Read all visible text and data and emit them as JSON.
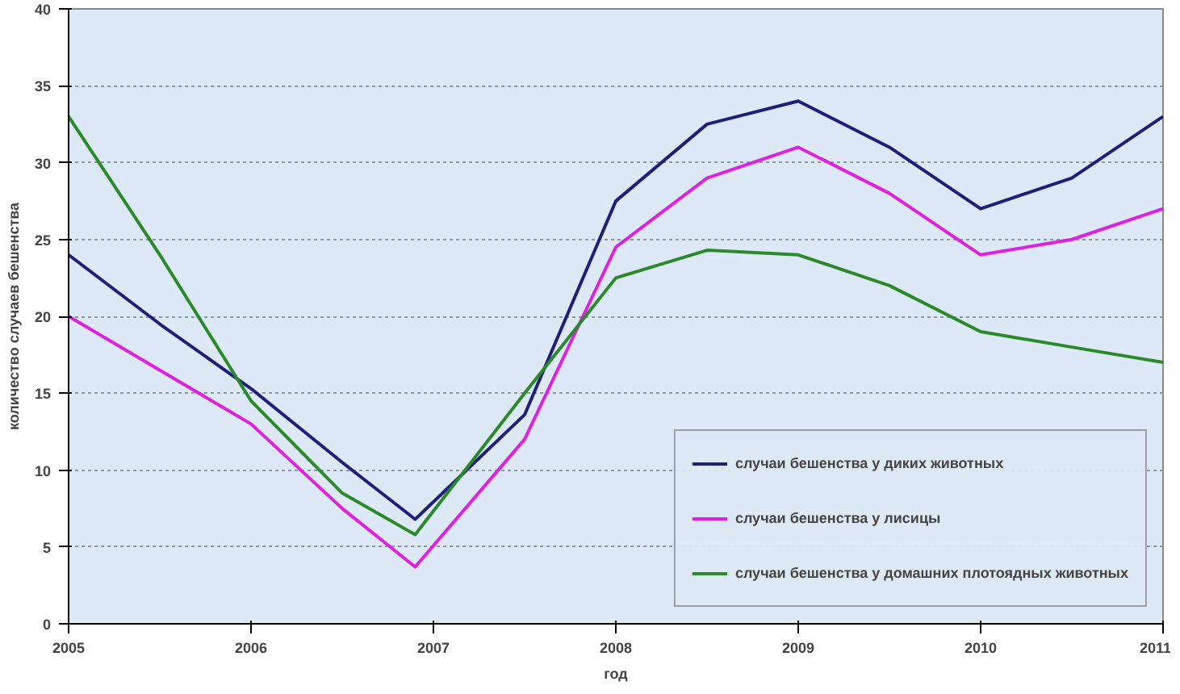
{
  "chart_data": {
    "type": "line",
    "ylabel": "количество случаев бешенства",
    "xlabel": "год",
    "xlim": [
      2005,
      2011
    ],
    "xticks": [
      2005,
      2006,
      2007,
      2008,
      2009,
      2010,
      2011
    ],
    "ylim": [
      0,
      40
    ],
    "yticks": [
      0,
      5,
      10,
      15,
      20,
      25,
      30,
      35,
      40
    ],
    "grid": "y",
    "legend": "bottom right",
    "marker": "none",
    "line_style": "solid",
    "x": [
      2005,
      2005.5,
      2006,
      2006.5,
      2006.9,
      2007.5,
      2008,
      2008.5,
      2009,
      2009.5,
      2010,
      2010.5,
      2011
    ],
    "series": [
      {
        "name": "случаи бешенства у диких животных",
        "color": "#1f1f7a",
        "values": [
          24,
          19.5,
          15.3,
          10.5,
          6.8,
          13.6,
          27.5,
          32.5,
          34,
          31,
          27,
          29,
          33
        ]
      },
      {
        "name": "случаи бешенства у лисицы",
        "color": "#e020e0",
        "values": [
          20,
          16.5,
          13,
          7.5,
          3.7,
          12,
          24.5,
          29,
          31,
          28,
          24,
          25,
          27
        ]
      },
      {
        "name": "случаи бешенства у домашних плотоядных животных",
        "color": "#2a8a2a",
        "values": [
          33,
          24,
          14.5,
          8.5,
          5.8,
          15,
          22.5,
          24.3,
          24,
          22,
          19,
          18,
          17
        ]
      }
    ]
  }
}
